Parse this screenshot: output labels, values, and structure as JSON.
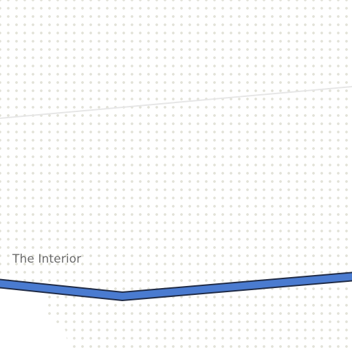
{
  "map": {
    "labels": {
      "region": "The Interior"
    },
    "colors": {
      "background": "#ffffff",
      "stipple": "#e2e2d8",
      "boundary_line": "#e6e6e6",
      "highway_fill": "#4a7bd0",
      "highway_casing": "#1f2a44",
      "label_text": "#6b6b6b"
    },
    "features": [
      {
        "kind": "boundary-line",
        "style": "thin light grey"
      },
      {
        "kind": "highway",
        "style": "blue with dark casing"
      },
      {
        "kind": "stipple-pattern",
        "style": "dotted terrain"
      }
    ]
  }
}
